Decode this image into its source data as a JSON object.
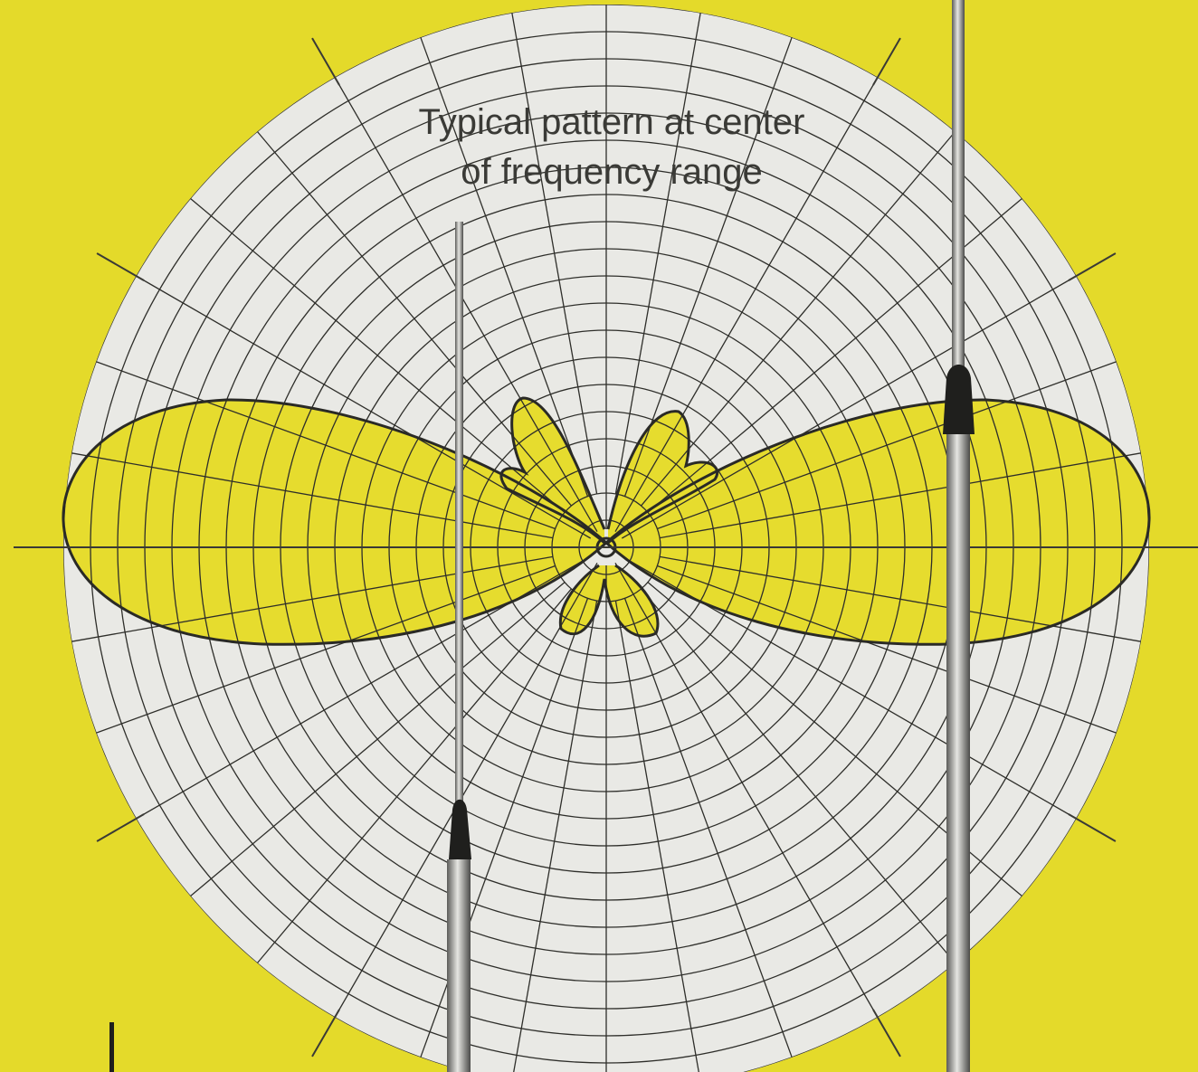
{
  "caption": {
    "lines": [
      "Typical pattern at center",
      "of frequency range"
    ]
  }
}
